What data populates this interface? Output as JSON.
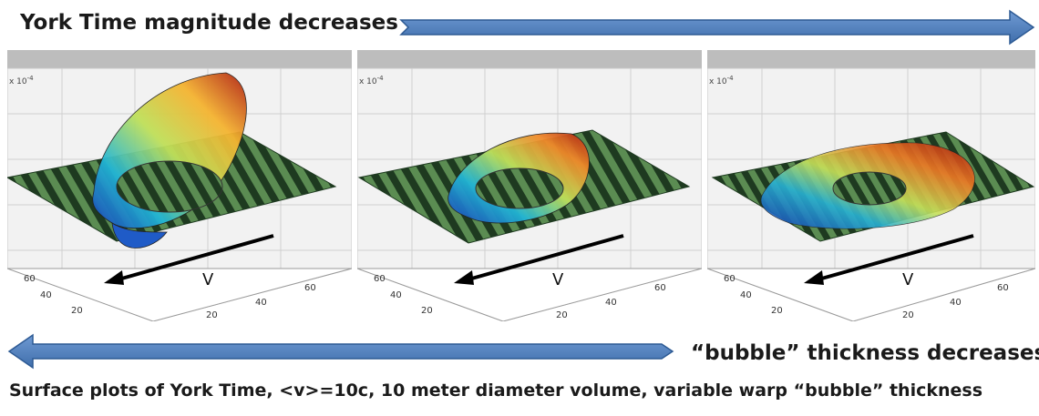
{
  "header": {
    "title": "York Time magnitude decreases"
  },
  "bottom_arrow": {
    "label": "“bubble” thickness decreases"
  },
  "caption": "Surface plots of York Time, <v>=10c, 10 meter diameter volume, variable warp “bubble” thickness",
  "panels": [
    {
      "scale_label": "x 10",
      "scale_exp": "-4",
      "velocity_label": "V",
      "ticks_left": [
        "60",
        "40",
        "20"
      ],
      "ticks_right": [
        "60",
        "40",
        "20"
      ]
    },
    {
      "scale_label": "x 10",
      "scale_exp": "-4",
      "velocity_label": "V",
      "ticks_left": [
        "60",
        "40",
        "20"
      ],
      "ticks_right": [
        "60",
        "40",
        "20"
      ]
    },
    {
      "scale_label": "x 10",
      "scale_exp": "-4",
      "velocity_label": "V",
      "ticks_left": [
        "60",
        "40",
        "20"
      ],
      "ticks_right": [
        "60",
        "40",
        "20"
      ]
    }
  ],
  "colors": {
    "arrow": "#4f7fbf",
    "arrow_edge": "#2d5a94",
    "grid_floor": "#2f5f33"
  }
}
